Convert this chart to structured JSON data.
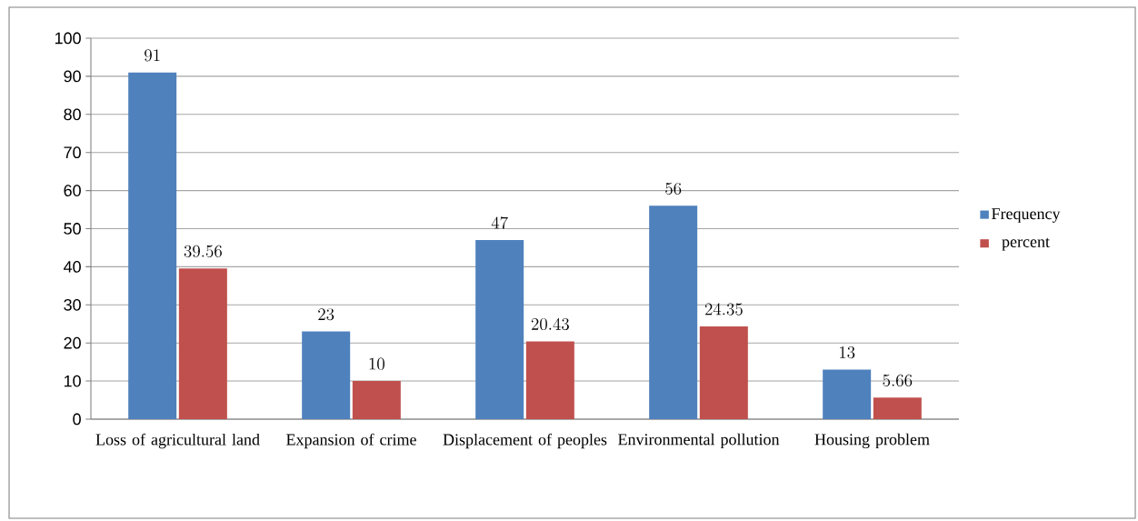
{
  "chart_data": {
    "type": "bar",
    "categories": [
      "Loss of agricultural land",
      "Expansion of crime",
      "Displacement of peoples",
      "Environmental pollution",
      "Housing problem"
    ],
    "series": [
      {
        "name": "Frequency",
        "color": "#4f81bd",
        "values": [
          91,
          23,
          47,
          56,
          13
        ]
      },
      {
        "name": "percent",
        "color": "#c0504d",
        "values": [
          39.56,
          10,
          20.43,
          24.35,
          5.66
        ]
      }
    ],
    "ylim": [
      0,
      100
    ],
    "yticks": [
      0,
      10,
      20,
      30,
      40,
      50,
      60,
      70,
      80,
      90,
      100
    ],
    "grid": "y",
    "legend": "right",
    "data_labels": true
  }
}
